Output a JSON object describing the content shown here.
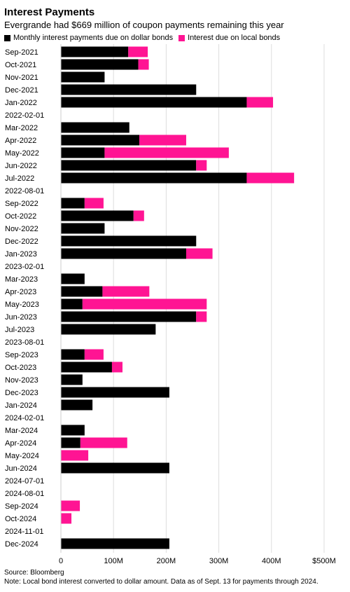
{
  "header": {
    "title": "Interest Payments",
    "subtitle": "Evergrande had $669 million of coupon payments remaining this year"
  },
  "footer": {
    "source": "Source: Bloomberg",
    "note": "Note: Local bond interest converted to dollar amount. Data as of Sept. 13 for payments through 2024."
  },
  "colors": {
    "dollar": "#000000",
    "local": "#ff1493"
  },
  "chart_data": {
    "type": "bar",
    "orientation": "horizontal",
    "stacked": true,
    "categories": [
      "Sep-2021",
      "Oct-2021",
      "Nov-2021",
      "Dec-2021",
      "Jan-2022",
      "2022-02-01",
      "Mar-2022",
      "Apr-2022",
      "May-2022",
      "Jun-2022",
      "Jul-2022",
      "2022-08-01",
      "Sep-2022",
      "Oct-2022",
      "Nov-2022",
      "Dec-2022",
      "Jan-2023",
      "2023-02-01",
      "Mar-2023",
      "Apr-2023",
      "May-2023",
      "Jun-2023",
      "Jul-2023",
      "2023-08-01",
      "Sep-2023",
      "Oct-2023",
      "Nov-2023",
      "Dec-2023",
      "Jan-2024",
      "2024-02-01",
      "Mar-2024",
      "Apr-2024",
      "May-2024",
      "Jun-2024",
      "2024-07-01",
      "2024-08-01",
      "Sep-2024",
      "Oct-2024",
      "2024-11-01",
      "Dec-2024"
    ],
    "series": [
      {
        "name": "Monthly interest payments due on dollar bonds",
        "values": [
          128,
          147,
          83,
          257,
          353,
          0,
          130,
          149,
          83,
          257,
          353,
          0,
          45,
          138,
          83,
          257,
          238,
          0,
          45,
          79,
          41,
          257,
          180,
          0,
          45,
          97,
          41,
          206,
          60,
          0,
          45,
          37,
          0,
          206,
          0,
          0,
          0,
          0,
          0,
          206
        ]
      },
      {
        "name": "Interest due on local bonds",
        "values": [
          37,
          20,
          0,
          0,
          50,
          0,
          0,
          89,
          236,
          20,
          90,
          0,
          36,
          20,
          0,
          0,
          50,
          0,
          0,
          89,
          236,
          20,
          0,
          0,
          36,
          20,
          0,
          0,
          0,
          0,
          0,
          89,
          52,
          0,
          0,
          0,
          36,
          20,
          0,
          0
        ]
      }
    ],
    "xlim": [
      0,
      500
    ],
    "xticks": [
      {
        "value": 0,
        "label": "0"
      },
      {
        "value": 100,
        "label": "100M"
      },
      {
        "value": 200,
        "label": "200M"
      },
      {
        "value": 300,
        "label": "300M"
      },
      {
        "value": 400,
        "label": "400M"
      },
      {
        "value": 500,
        "label": "$500M"
      }
    ],
    "grid": "vertical"
  }
}
